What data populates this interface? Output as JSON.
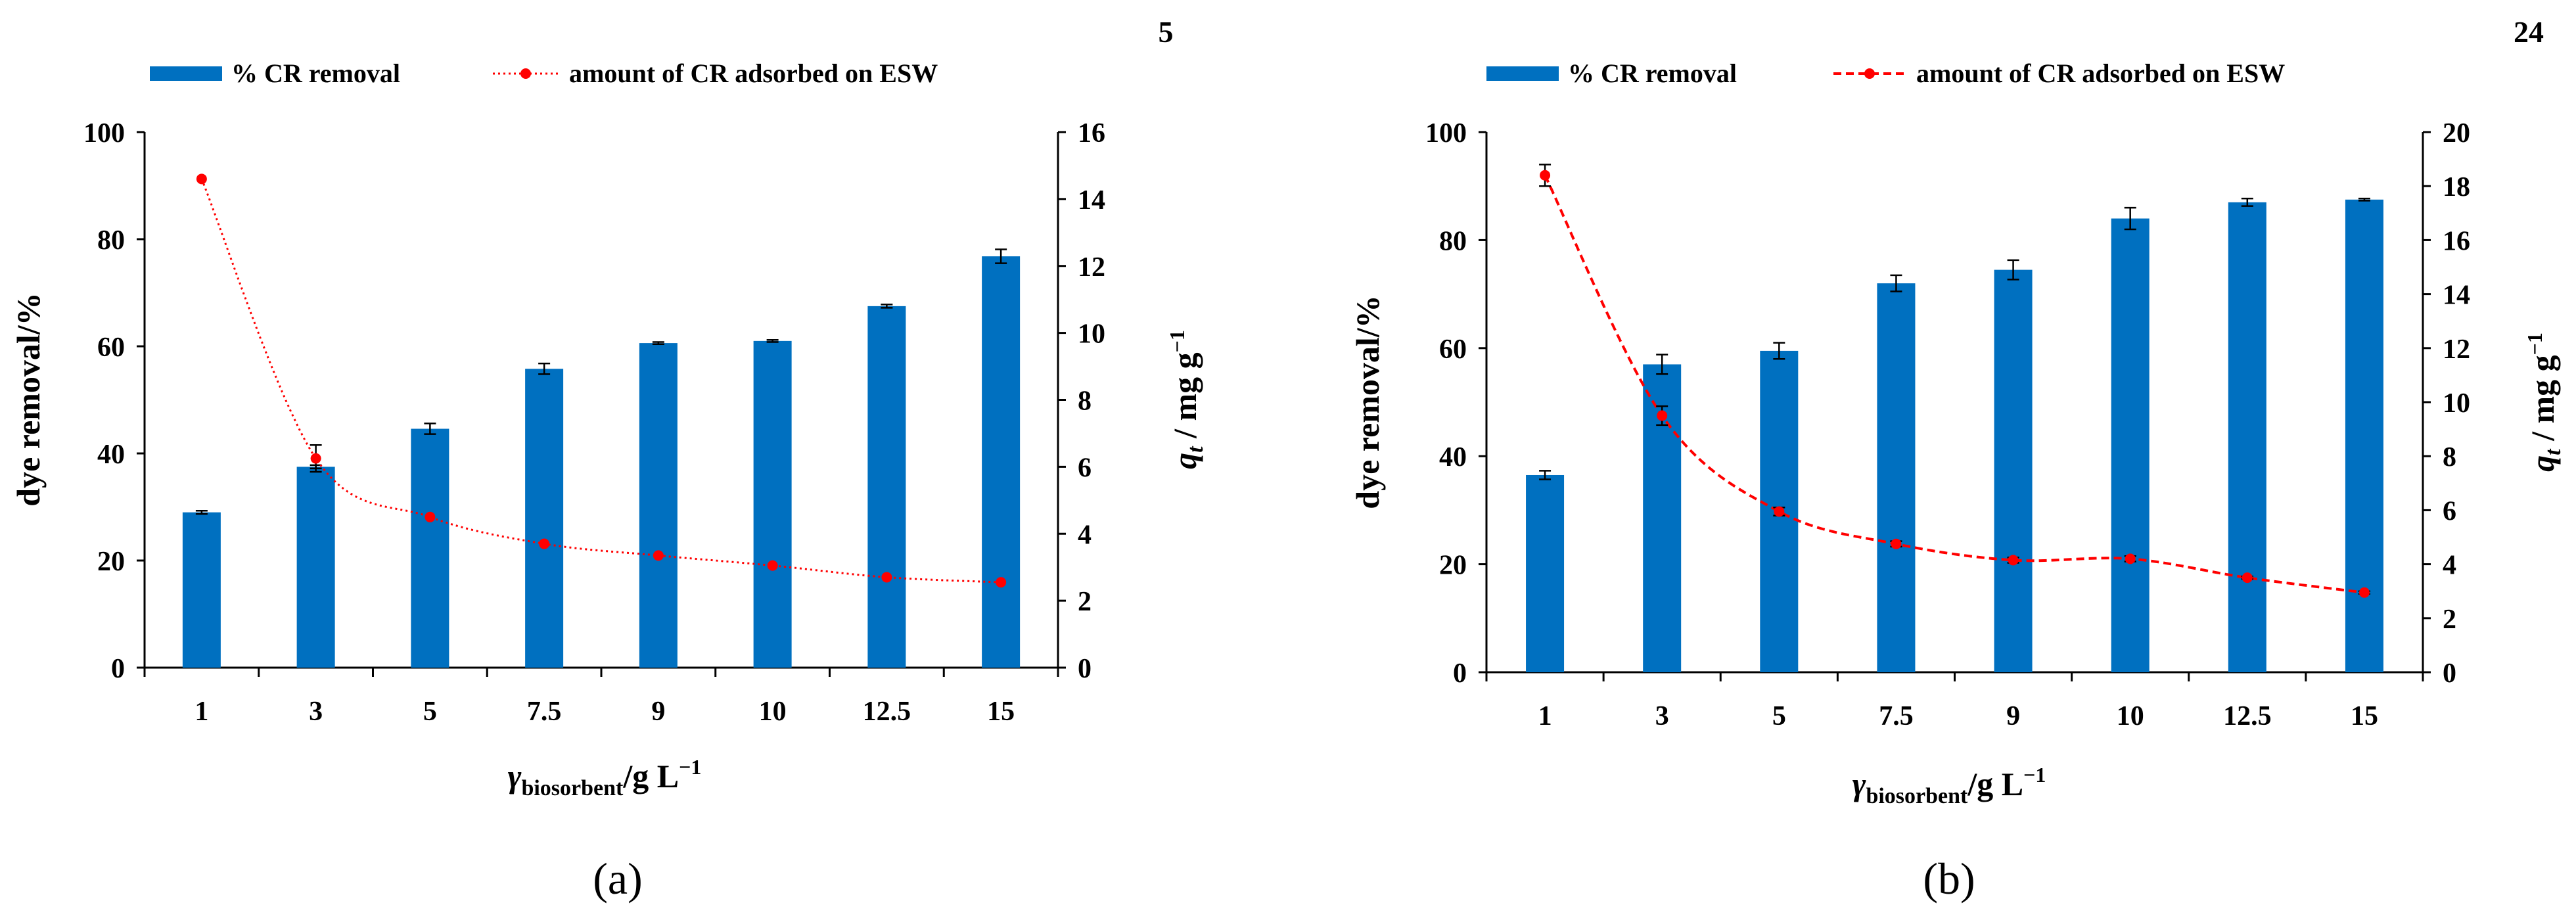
{
  "chart_data": [
    {
      "panel": "a",
      "type": "bar+line",
      "corner_label": "5",
      "caption": "(a)",
      "categories": [
        "1",
        "3",
        "5",
        "7.5",
        "9",
        "10",
        "12.5",
        "15"
      ],
      "series": [
        {
          "name": "% CR removal",
          "kind": "bar",
          "axis": "left",
          "color": "#0070c0",
          "values": [
            29,
            37.5,
            44.6,
            55.8,
            60.6,
            61,
            67.5,
            76.8
          ],
          "errors": [
            0.3,
            0.3,
            1.0,
            1.0,
            0.2,
            0.2,
            0.3,
            1.3
          ]
        },
        {
          "name": "amount of CR adsorbed on ESW",
          "kind": "line",
          "axis": "right",
          "color": "#ff0000",
          "line_style": "dotted",
          "values": [
            14.6,
            6.25,
            4.5,
            3.7,
            3.35,
            3.05,
            2.7,
            2.55
          ],
          "errors": [
            0,
            0.4,
            0,
            0,
            0,
            0,
            0,
            0
          ]
        }
      ],
      "xlabel": {
        "main": "γ",
        "sub": "biosorbent",
        "unit": "/g L",
        "sup": "−1"
      },
      "ylabel_left": "dye removal/%",
      "ylabel_right": {
        "var": "q",
        "sub": "t",
        "unit": " / mg g",
        "sup": "−1"
      },
      "ylim_left": [
        0,
        100
      ],
      "yticks_left": [
        "0",
        "20",
        "40",
        "60",
        "80",
        "100"
      ],
      "ylim_right": [
        0,
        16
      ],
      "yticks_right": [
        "0",
        "2",
        "4",
        "6",
        "8",
        "10",
        "12",
        "14",
        "16"
      ],
      "grid": false,
      "legend": "top"
    },
    {
      "panel": "b",
      "type": "bar+line",
      "corner_label": "24",
      "caption": "(b)",
      "categories": [
        "1",
        "3",
        "5",
        "7.5",
        "9",
        "10",
        "12.5",
        "15"
      ],
      "series": [
        {
          "name": "% CR removal",
          "kind": "bar",
          "axis": "left",
          "color": "#0070c0",
          "values": [
            36.5,
            57,
            59.5,
            72,
            74.5,
            84,
            87,
            87.5
          ],
          "errors": [
            0.8,
            1.8,
            1.5,
            1.5,
            1.8,
            2.0,
            0.7,
            0.2
          ]
        },
        {
          "name": "amount of CR adsorbed on ESW",
          "kind": "line",
          "axis": "right",
          "color": "#ff0000",
          "line_style": "dashed",
          "values": [
            18.4,
            9.5,
            5.95,
            4.75,
            4.15,
            4.2,
            3.5,
            2.95
          ],
          "errors": [
            0.4,
            0.35,
            0.15,
            0.1,
            0.1,
            0.1,
            0.05,
            0.05
          ]
        }
      ],
      "xlabel": {
        "main": "γ",
        "sub": "biosorbent",
        "unit": "/g L",
        "sup": "−1"
      },
      "ylabel_left": "dye removal/%",
      "ylabel_right": {
        "var": "q",
        "sub": "t",
        "unit": " / mg g",
        "sup": "−1"
      },
      "ylim_left": [
        0,
        100
      ],
      "yticks_left": [
        "0",
        "20",
        "40",
        "60",
        "80",
        "100"
      ],
      "ylim_right": [
        0,
        20
      ],
      "yticks_right": [
        "0",
        "2",
        "4",
        "6",
        "8",
        "10",
        "12",
        "14",
        "16",
        "18",
        "20"
      ],
      "grid": false,
      "legend": "top"
    }
  ]
}
